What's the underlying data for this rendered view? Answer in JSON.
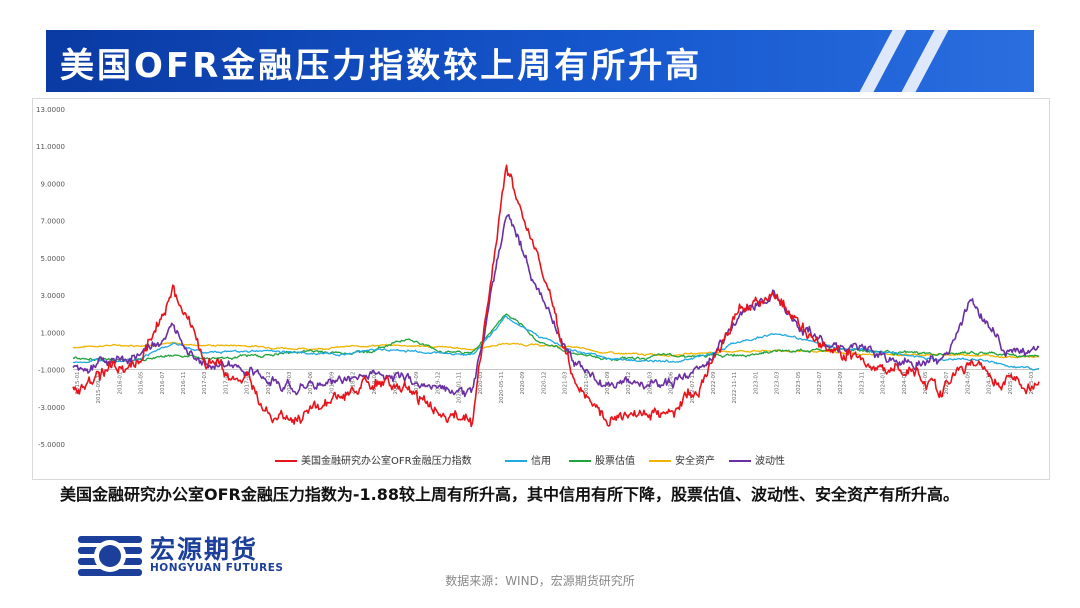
{
  "title": "美国OFR金融压力指数较上周有所升高",
  "description": "美国金融研究办公室OFR金融压力指数为-1.88较上周有所升高，其中信用有所下降，股票估值、波动性、安全资产有所升高。",
  "logo": {
    "cn": "宏源期货",
    "en": "HONGYUAN FUTURES"
  },
  "source": "数据来源：WIND，宏源期货研究所",
  "colors": {
    "banner": "#1556cc",
    "brand": "#1b3f9a"
  },
  "chart_data": {
    "type": "line",
    "title": "",
    "xlabel": "",
    "ylabel": "",
    "ylim": [
      -5,
      13
    ],
    "y_ticks": [
      "13.0000",
      "11.0000",
      "9.0000",
      "7.0000",
      "5.0000",
      "3.0000",
      "1.0000",
      "-1.0000",
      "-3.0000",
      "-5.0000"
    ],
    "y_tick_values": [
      13,
      11,
      9,
      7,
      5,
      3,
      1,
      -1,
      -3,
      -5
    ],
    "grid": false,
    "legend_position": "bottom",
    "x": [
      "2015-01",
      "2015-06",
      "2015-12",
      "2016-02",
      "2016-06",
      "2016-12",
      "2017-06",
      "2017-12",
      "2018-06",
      "2018-12",
      "2019-06",
      "2019-12",
      "2020-02",
      "2020-03",
      "2020-04",
      "2020-06",
      "2020-12",
      "2021-06",
      "2021-12",
      "2022-03",
      "2022-06",
      "2022-10",
      "2022-12",
      "2023-03",
      "2023-06",
      "2023-12",
      "2024-06",
      "2024-08",
      "2024-12",
      "2025-03"
    ],
    "x_tick_labels": [
      "2015-01",
      "2015-09-11",
      "2016-01",
      "2016-05",
      "2016-07",
      "2016-11",
      "2017-03",
      "2017-06",
      "2017-09",
      "2017-12",
      "2018-03",
      "2018-06",
      "2018-09",
      "2018-12",
      "2019-03",
      "2019-06",
      "2019-09",
      "2019-12",
      "2020-01-11",
      "2020-03",
      "2020-05-11",
      "2020-09",
      "2020-12",
      "2021-03",
      "2021-06",
      "2021-09",
      "2021-12",
      "2022-03",
      "2022-06",
      "2022-07-11",
      "2022-09",
      "2022-11-11",
      "2023-01",
      "2023-03",
      "2023-05",
      "2023-07",
      "2023-09",
      "2023-11",
      "2024-01",
      "2024-03",
      "2024-05",
      "2024-07",
      "2024-09",
      "2024-11",
      "2025-01",
      "2025-03"
    ],
    "series": [
      {
        "name": "美国金融研究办公室OFR金融压力指数",
        "color": "#e8141b",
        "values": [
          -1.8,
          -1.2,
          -0.5,
          3.3,
          -0.5,
          -1.5,
          -3.3,
          -3.6,
          -2.6,
          -1.6,
          -2.2,
          -3.4,
          -3.8,
          10.0,
          4.8,
          -1.5,
          -3.7,
          -3.4,
          -3.3,
          -1.5,
          2.3,
          3.0,
          1.0,
          0.0,
          -0.5,
          -1.0,
          -2.0,
          -0.5,
          -1.6,
          -1.88
        ]
      },
      {
        "name": "信用",
        "color": "#21a9e0",
        "values": [
          -0.6,
          -0.5,
          -0.4,
          0.4,
          -0.1,
          0.0,
          0.0,
          -0.1,
          -0.2,
          0.1,
          0.0,
          -0.1,
          -0.2,
          1.8,
          0.8,
          0.0,
          -0.4,
          -0.5,
          -0.6,
          -0.2,
          0.5,
          0.9,
          0.6,
          0.2,
          0.0,
          -0.2,
          -0.5,
          -0.4,
          -0.8,
          -1.0
        ]
      },
      {
        "name": "股票估值",
        "color": "#22a33c",
        "values": [
          -0.4,
          -0.5,
          -0.5,
          -0.2,
          -0.4,
          -0.3,
          -0.2,
          0.0,
          -0.1,
          0.0,
          0.7,
          0.0,
          -0.1,
          2.0,
          0.5,
          -0.1,
          -0.4,
          -0.4,
          -0.2,
          -0.3,
          -0.2,
          0.0,
          0.0,
          0.1,
          0.0,
          -0.1,
          -0.2,
          -0.1,
          -0.2,
          -0.3
        ]
      },
      {
        "name": "安全资产",
        "color": "#f0b400",
        "values": [
          0.2,
          0.3,
          0.3,
          0.4,
          0.3,
          0.3,
          0.2,
          0.1,
          0.2,
          0.3,
          0.3,
          0.2,
          0.1,
          0.4,
          0.3,
          0.2,
          -0.1,
          -0.2,
          -0.2,
          -0.1,
          0.0,
          0.0,
          0.0,
          -0.1,
          -0.2,
          -0.2,
          -0.2,
          -0.2,
          -0.3,
          -0.3
        ]
      },
      {
        "name": "波动性",
        "color": "#6a2fa3",
        "values": [
          -0.9,
          -0.6,
          -0.3,
          1.0,
          -0.5,
          -1.1,
          -1.7,
          -2.0,
          -1.6,
          -1.2,
          -1.5,
          -1.9,
          -2.3,
          7.5,
          3.2,
          -0.6,
          -1.8,
          -1.9,
          -1.8,
          -0.8,
          2.0,
          3.1,
          1.0,
          0.2,
          -0.2,
          -0.5,
          -0.6,
          2.6,
          -0.1,
          0.0
        ]
      }
    ]
  }
}
